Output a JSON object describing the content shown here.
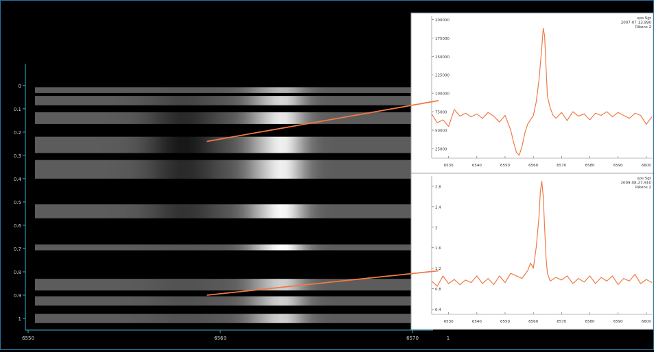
{
  "chart_data": [
    {
      "type": "heatmap",
      "x_ticks": [
        "6550",
        "6560",
        "6570"
      ],
      "x_tick_values": [
        6550,
        6560,
        6570
      ],
      "x_extra_tick": "1",
      "y_ticks": [
        "0",
        "0.1",
        "0.2",
        "0.3",
        "0.4",
        "0.5",
        "0.6",
        "0.7",
        "0.8",
        "0.9",
        "1"
      ],
      "y_tick_values": [
        0,
        0.1,
        0.2,
        0.3,
        0.4,
        0.5,
        0.6,
        0.7,
        0.8,
        0.9,
        1
      ],
      "xlim": [
        6550,
        6571
      ],
      "ylim": [
        -0.07,
        1.05
      ],
      "colormap": [
        "#000000",
        "#ffffff"
      ],
      "phase_strips": [
        {
          "phase": 0.02,
          "height": 0.025,
          "absorption": 0.05,
          "emission": 0.55
        },
        {
          "phase": 0.065,
          "height": 0.04,
          "absorption": 0.25,
          "emission": 0.75
        },
        {
          "phase": 0.14,
          "height": 0.05,
          "absorption": 0.55,
          "emission": 0.85
        },
        {
          "phase": 0.255,
          "height": 0.07,
          "absorption": 0.75,
          "emission": 0.9
        },
        {
          "phase": 0.36,
          "height": 0.08,
          "absorption": 0.55,
          "emission": 0.9
        },
        {
          "phase": 0.54,
          "height": 0.06,
          "absorption": 0.45,
          "emission": 0.95
        },
        {
          "phase": 0.695,
          "height": 0.025,
          "absorption": 0.05,
          "emission": 1.0
        },
        {
          "phase": 0.855,
          "height": 0.05,
          "absorption": 0.1,
          "emission": 0.7
        },
        {
          "phase": 0.925,
          "height": 0.04,
          "absorption": 0.1,
          "emission": 0.7
        },
        {
          "phase": 1.0,
          "height": 0.04,
          "absorption": 0.1,
          "emission": 0.7
        }
      ],
      "strip_features": {
        "absorption_center": 6558.1,
        "absorption_width": 1.8,
        "emission_center": 6563.3,
        "emission_width": 1.1,
        "bright_left": 6562.0
      }
    },
    {
      "type": "line",
      "annotation": [
        "ups Sgr",
        "2007-07-13.990",
        "Rikens 2"
      ],
      "x_ticks": [
        6530,
        6540,
        6550,
        6560,
        6570,
        6580,
        6590,
        6600
      ],
      "xlim": [
        6524,
        6602
      ],
      "y_ticks": [
        25000,
        50000,
        75000,
        100000,
        125000,
        150000,
        175000,
        200000
      ],
      "y_tick_labels": [
        "25000",
        "50000",
        "75000",
        "100000",
        "125000",
        "150000",
        "175000",
        "200000"
      ],
      "ylim": [
        12000,
        205000
      ],
      "line_color": "#f07a45",
      "series": [
        {
          "x": [
            6524,
            6526,
            6528,
            6530,
            6532,
            6534,
            6536,
            6538,
            6540,
            6542,
            6544,
            6546,
            6548,
            6550,
            6552,
            6553,
            6554,
            6555,
            6556,
            6557,
            6558,
            6560,
            6561,
            6562,
            6563,
            6563.5,
            6564,
            6564.5,
            6565,
            6566,
            6567,
            6568,
            6570,
            6572,
            6574,
            6576,
            6578,
            6580,
            6582,
            6584,
            6586,
            6588,
            6590,
            6592,
            6594,
            6596,
            6598,
            6600,
            6602
          ],
          "y": [
            72000,
            60000,
            64000,
            55000,
            78000,
            69000,
            73000,
            68000,
            72000,
            66000,
            74000,
            69000,
            61000,
            70000,
            50000,
            34000,
            20000,
            16000,
            28000,
            46000,
            58000,
            70000,
            88000,
            118000,
            162000,
            188000,
            178000,
            135000,
            96000,
            80000,
            70000,
            66000,
            74000,
            63000,
            75000,
            69000,
            72000,
            64000,
            73000,
            70000,
            75000,
            68000,
            74000,
            70000,
            66000,
            73000,
            70000,
            58000,
            68000
          ]
        }
      ]
    },
    {
      "type": "line",
      "annotation": [
        "ups Sgr",
        "2009-08-27-910",
        "Rikens 2"
      ],
      "x_ticks": [
        6530,
        6540,
        6550,
        6560,
        6570,
        6580,
        6590,
        6600
      ],
      "xlim": [
        6524,
        6602
      ],
      "y_ticks": [
        0.4,
        0.8,
        1.2,
        1.6,
        2,
        2.4,
        2.8
      ],
      "y_tick_labels": [
        "0.4",
        "0.8",
        "1.2",
        "1.6",
        "2",
        "2.4",
        "2.8"
      ],
      "ylim": [
        0.3,
        3.0
      ],
      "line_color": "#f07a45",
      "series": [
        {
          "x": [
            6524,
            6526,
            6528,
            6530,
            6532,
            6534,
            6536,
            6538,
            6540,
            6542,
            6544,
            6546,
            6548,
            6550,
            6552,
            6554,
            6556,
            6558,
            6559,
            6560,
            6561,
            6562,
            6562.5,
            6563,
            6563.5,
            6564,
            6564.5,
            6565,
            6566,
            6568,
            6570,
            6572,
            6574,
            6576,
            6578,
            6580,
            6582,
            6584,
            6586,
            6588,
            6590,
            6592,
            6594,
            6596,
            6598,
            6600,
            6602
          ],
          "y": [
            0.95,
            0.85,
            1.05,
            0.9,
            0.98,
            0.88,
            0.97,
            0.92,
            1.05,
            0.9,
            1.0,
            0.88,
            1.05,
            0.92,
            1.1,
            1.05,
            1.0,
            1.15,
            1.3,
            1.2,
            1.6,
            2.2,
            2.7,
            2.9,
            2.6,
            2.0,
            1.4,
            1.1,
            0.95,
            1.02,
            0.97,
            1.05,
            0.9,
            1.0,
            0.93,
            1.05,
            0.9,
            1.02,
            0.95,
            1.05,
            0.88,
            1.0,
            0.95,
            1.08,
            0.9,
            0.98,
            0.92
          ]
        }
      ]
    }
  ],
  "connectors": [
    {
      "from_phase": 0.24,
      "from_wavelength": 6559.3,
      "to_flux": 90000,
      "color": "#f07a45"
    },
    {
      "from_phase": 0.9,
      "from_wavelength": 6559.3,
      "to_flux": 1.15,
      "color": "#f07a45"
    }
  ]
}
